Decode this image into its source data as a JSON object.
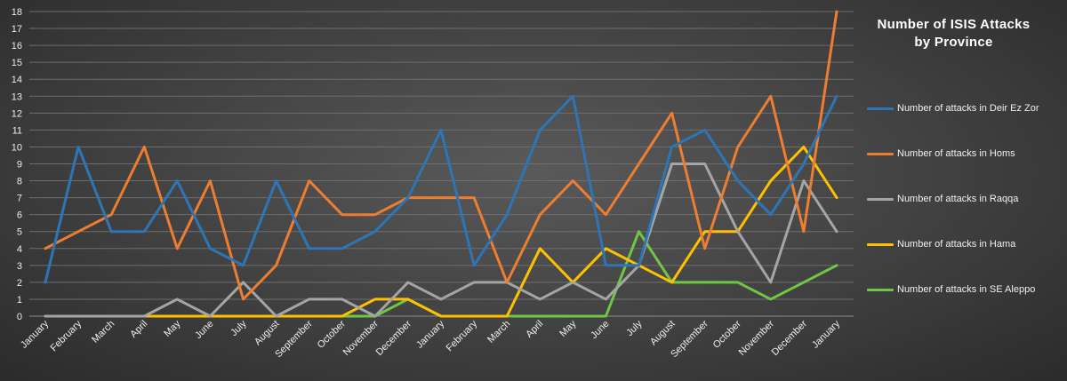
{
  "chart_data": {
    "type": "line",
    "title_line1": "Number of ISIS Attacks",
    "title_line2": "by Province",
    "categories": [
      "January",
      "February",
      "March",
      "April",
      "May",
      "June",
      "July",
      "August",
      "September",
      "October",
      "November",
      "December",
      "January",
      "February",
      "March",
      "April",
      "May",
      "June",
      "July",
      "August",
      "September",
      "October",
      "November",
      "December",
      "January"
    ],
    "yticks": [
      "0",
      "1",
      "2",
      "3",
      "4",
      "5",
      "6",
      "7",
      "8",
      "9",
      "10",
      "11",
      "12",
      "13",
      "14",
      "15",
      "16",
      "17",
      "18"
    ],
    "ylim": [
      0,
      18
    ],
    "grid": true,
    "legend_position": "right",
    "series": [
      {
        "name": "Number of attacks in Deir Ez Zor",
        "color": "#2e75b6",
        "values": [
          2,
          10,
          5,
          5,
          8,
          4,
          3,
          8,
          4,
          4,
          5,
          7,
          11,
          3,
          6,
          11,
          13,
          3,
          3,
          10,
          11,
          8,
          6,
          9,
          13
        ]
      },
      {
        "name": "Number of attacks in Homs",
        "color": "#ed7d31",
        "values": [
          4,
          5,
          6,
          10,
          4,
          8,
          1,
          3,
          8,
          6,
          6,
          7,
          7,
          7,
          2,
          6,
          8,
          6,
          9,
          12,
          4,
          10,
          13,
          5,
          18
        ]
      },
      {
        "name": "Number of attacks in Raqqa",
        "color": "#a5a5a5",
        "values": [
          0,
          0,
          0,
          0,
          1,
          0,
          2,
          0,
          1,
          1,
          0,
          2,
          1,
          2,
          2,
          1,
          2,
          1,
          3,
          9,
          9,
          5,
          2,
          8,
          5
        ]
      },
      {
        "name": "Number of attacks in Hama",
        "color": "#ffc000",
        "values": [
          0,
          0,
          0,
          0,
          0,
          0,
          0,
          0,
          0,
          0,
          1,
          1,
          0,
          0,
          0,
          4,
          2,
          4,
          3,
          2,
          5,
          5,
          8,
          10,
          7
        ]
      },
      {
        "name": "Number of attacks in SE Aleppo",
        "color": "#70c645",
        "values": [
          0,
          0,
          0,
          0,
          0,
          0,
          0,
          0,
          0,
          0,
          0,
          1,
          0,
          0,
          0,
          0,
          0,
          0,
          5,
          2,
          2,
          2,
          1,
          2,
          3
        ]
      }
    ]
  }
}
